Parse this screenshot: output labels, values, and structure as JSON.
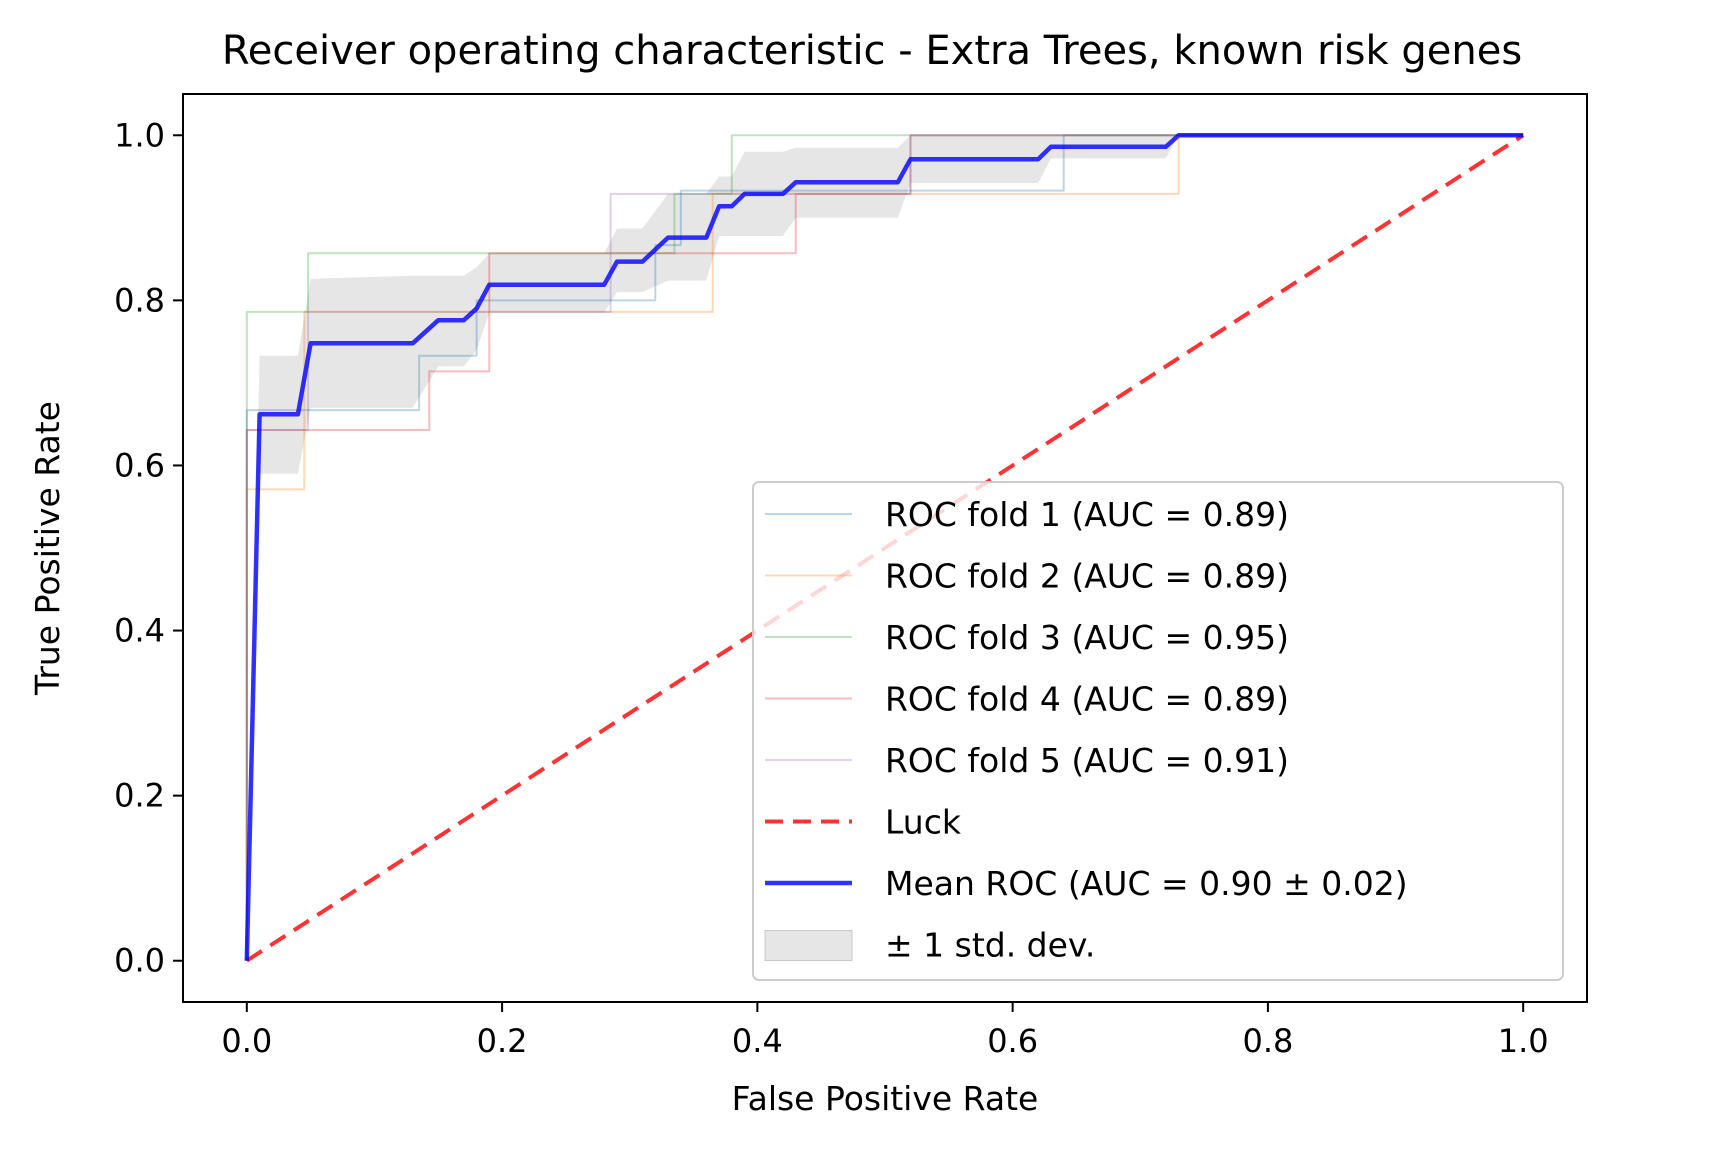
{
  "chart_data": {
    "type": "line",
    "title": "Receiver operating characteristic - Extra Trees, known risk genes",
    "xlabel": "False Positive Rate",
    "ylabel": "True Positive Rate",
    "xlim": [
      -0.05,
      1.05
    ],
    "ylim": [
      -0.05,
      1.05
    ],
    "xticks": [
      "0.0",
      "0.2",
      "0.4",
      "0.6",
      "0.8",
      "1.0"
    ],
    "yticks": [
      "0.0",
      "0.2",
      "0.4",
      "0.6",
      "0.8",
      "1.0"
    ],
    "grid": false,
    "legend_position": "lower-right",
    "series": [
      {
        "name": "ROC fold 1 (AUC = 0.89)",
        "color": "#1f77b4",
        "x": [
          0,
          0,
          0.012,
          0.012,
          0.135,
          0.135,
          0.18,
          0.18,
          0.19,
          0.19,
          0.32,
          0.32,
          0.34,
          0.34,
          0.52,
          0.52,
          0.64,
          0.64,
          1.0
        ],
        "y": [
          0,
          0.667,
          0.667,
          0.667,
          0.667,
          0.733,
          0.733,
          0.8,
          0.8,
          0.8,
          0.8,
          0.867,
          0.867,
          0.933,
          0.933,
          0.933,
          0.933,
          1.0,
          1.0
        ]
      },
      {
        "name": "ROC fold 2 (AUC = 0.89)",
        "color": "#ff7f0e",
        "x": [
          0,
          0,
          0.045,
          0.045,
          0.19,
          0.19,
          0.365,
          0.365,
          0.52,
          0.52,
          0.73,
          0.73,
          1.0
        ],
        "y": [
          0,
          0.571,
          0.571,
          0.786,
          0.786,
          0.786,
          0.786,
          0.929,
          0.929,
          0.929,
          0.929,
          1.0,
          1.0
        ]
      },
      {
        "name": "ROC fold 3 (AUC = 0.95)",
        "color": "#2ca02c",
        "x": [
          0,
          0,
          0.048,
          0.048,
          0.19,
          0.19,
          0.335,
          0.335,
          0.38,
          0.38,
          1.0
        ],
        "y": [
          0,
          0.786,
          0.786,
          0.857,
          0.857,
          0.857,
          0.857,
          0.929,
          0.929,
          1.0,
          1.0
        ]
      },
      {
        "name": "ROC fold 4 (AUC = 0.89)",
        "color": "#d62728",
        "x": [
          0,
          0,
          0.143,
          0.143,
          0.19,
          0.19,
          0.43,
          0.43,
          0.52,
          0.52,
          1.0
        ],
        "y": [
          0,
          0.643,
          0.643,
          0.714,
          0.714,
          0.857,
          0.857,
          0.929,
          0.929,
          1.0,
          1.0
        ]
      },
      {
        "name": "ROC fold 5 (AUC = 0.91)",
        "color": "#9467bd",
        "x": [
          0,
          0,
          0.048,
          0.048,
          0.285,
          0.285,
          0.335,
          0.335,
          0.52,
          0.52,
          1.0
        ],
        "y": [
          0,
          0.643,
          0.643,
          0.786,
          0.786,
          0.929,
          0.929,
          0.929,
          0.929,
          1.0,
          1.0
        ]
      },
      {
        "name": "Luck",
        "color": "#ff0000",
        "dashed": true,
        "x": [
          0,
          1
        ],
        "y": [
          0,
          1
        ]
      },
      {
        "name": "Mean ROC (AUC = 0.90 ± 0.02)",
        "color": "#0000ff",
        "x": [
          0,
          0.01,
          0.04,
          0.05,
          0.13,
          0.15,
          0.17,
          0.18,
          0.19,
          0.28,
          0.29,
          0.31,
          0.33,
          0.34,
          0.36,
          0.37,
          0.38,
          0.39,
          0.42,
          0.43,
          0.51,
          0.52,
          0.62,
          0.63,
          0.71,
          0.72,
          0.73,
          1.0
        ],
        "y": [
          0,
          0.662,
          0.662,
          0.748,
          0.748,
          0.776,
          0.776,
          0.79,
          0.819,
          0.819,
          0.847,
          0.847,
          0.876,
          0.876,
          0.876,
          0.914,
          0.914,
          0.929,
          0.929,
          0.943,
          0.943,
          0.971,
          0.971,
          0.986,
          0.986,
          0.986,
          1.0,
          1.0
        ]
      }
    ],
    "std_band": {
      "name": "± 1 std. dev.",
      "color": "#bdbdbd",
      "x": [
        0,
        0.01,
        0.04,
        0.05,
        0.13,
        0.15,
        0.17,
        0.18,
        0.19,
        0.28,
        0.29,
        0.31,
        0.33,
        0.34,
        0.36,
        0.37,
        0.38,
        0.39,
        0.42,
        0.43,
        0.51,
        0.52,
        0.62,
        0.63,
        0.71,
        0.72,
        0.73,
        1.0
      ],
      "upper": [
        0,
        0.733,
        0.733,
        0.826,
        0.83,
        0.83,
        0.83,
        0.84,
        0.857,
        0.857,
        0.887,
        0.887,
        0.929,
        0.929,
        0.929,
        0.95,
        0.95,
        0.98,
        0.98,
        0.985,
        0.985,
        1.0,
        1.0,
        1.0,
        1.0,
        1.0,
        1.0,
        1.0
      ],
      "lower": [
        0,
        0.59,
        0.59,
        0.67,
        0.67,
        0.72,
        0.72,
        0.74,
        0.785,
        0.785,
        0.81,
        0.81,
        0.824,
        0.824,
        0.824,
        0.878,
        0.878,
        0.878,
        0.878,
        0.9,
        0.9,
        0.942,
        0.942,
        0.972,
        0.972,
        0.972,
        1.0,
        1.0
      ]
    }
  }
}
